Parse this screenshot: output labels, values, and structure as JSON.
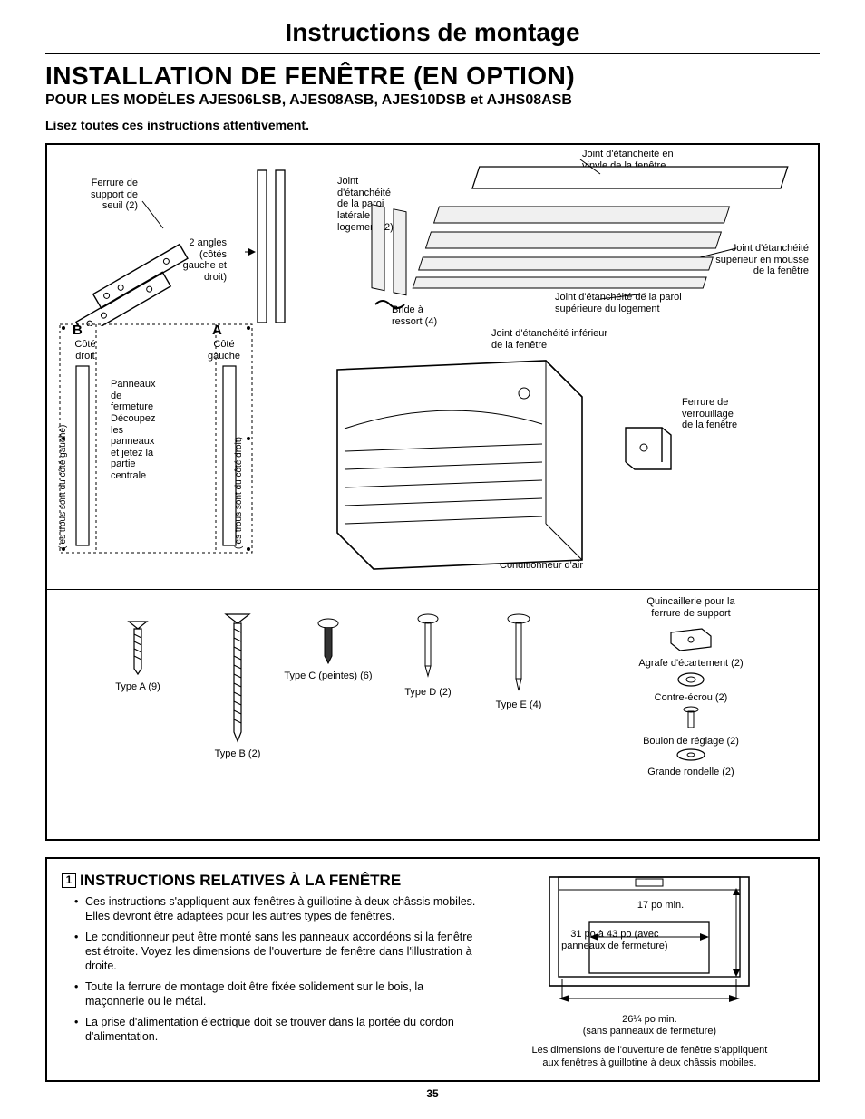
{
  "page": {
    "title": "Instructions de montage",
    "heading": "INSTALLATION DE FENÊTRE (EN OPTION)",
    "subheading": "POUR LES MODÈLES AJES06LSB, AJES08ASB, AJES10DSB et AJHS08ASB",
    "readNote": "Lisez toutes ces instructions attentivement.",
    "pageNumber": "35",
    "colors": {
      "text": "#000000",
      "background": "#ffffff",
      "border": "#000000"
    }
  },
  "partsDiagram": {
    "labels": {
      "sillBracket": "Ferrure de\nsupport de\nseuil (2)",
      "twoAngles": "2 angles\n(côtés\ngauche et\ndroit)",
      "panelB": "B",
      "panelB_sub": "Côté\ndroit",
      "panelA": "A",
      "panelA_sub": "Côté\ngauche",
      "panelCut": "Panneaux\nde\nfermeture\nDécoupez\nles\npanneaux\net jetez la\npartie\ncentrale",
      "holesLeft": "(les trous sont du côté gauche)",
      "holesRight": "(les trous sont du côté droit)",
      "sideSeal": "Joint\nd'étanchéité\nde la paroi\nlatérale du\nlogement (2)",
      "springClip": "Bride à\nressort (4)",
      "vinylSeal": "Joint d'étanchéité en\nvinyle de la fenêtre",
      "foamSeal": "Joint d'étanchéité\nsupérieur en mousse\nde la fenêtre",
      "topWallSeal": "Joint d'étanchéité de la paroi\nsupérieure du logement",
      "bottomSeal": "Joint d'étanchéité inférieur\nde la fenêtre",
      "lockBracket": "Ferrure de\nverrouillage\nde la fenêtre",
      "acUnit": "Conditionneur d'air"
    },
    "screws": {
      "typeA": "Type A (9)",
      "typeB": "Type B (2)",
      "typeC": "Type C (peintes) (6)",
      "typeD": "Type D (2)",
      "typeE": "Type E (4)"
    },
    "hardware": {
      "heading": "Quincaillerie pour la\nferrure de support",
      "spacer": "Agrafe d'écartement (2)",
      "locknut": "Contre-écrou (2)",
      "bolt": "Boulon de réglage (2)",
      "washer": "Grande rondelle (2)"
    }
  },
  "windowInstructions": {
    "stepNumber": "1",
    "title": "INSTRUCTIONS RELATIVES À LA FENÊTRE",
    "bullets": [
      "Ces instructions s'appliquent aux fenêtres à guillotine à deux châssis mobiles. Elles devront être adaptées pour les autres types de fenêtres.",
      "Le conditionneur peut être monté sans les panneaux accordéons si la fenêtre est étroite. Voyez les dimensions de l'ouverture de fenêtre dans l'illustration à droite.",
      "Toute la ferrure de montage doit être fixée solidement sur le bois, la maçonnerie ou le métal.",
      "La prise d'alimentation électrique doit se trouver dans la portée du cordon d'alimentation."
    ],
    "dimensions": {
      "height": "17 po min.",
      "widthWith": "31 po à 43 po (avec\npanneaux de fermeture)",
      "widthWithout": "26¼ po min.\n(sans panneaux de fermeture)",
      "caption": "Les dimensions de l'ouverture de fenêtre s'appliquent\naux fenêtres à guillotine à deux châssis mobiles."
    }
  }
}
